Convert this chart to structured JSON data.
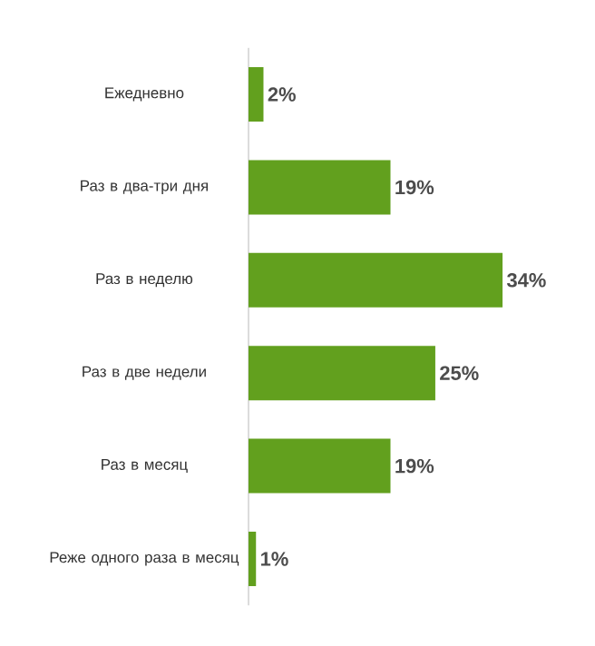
{
  "chart_data": {
    "type": "bar",
    "orientation": "horizontal",
    "categories": [
      "Ежедневно",
      "Раз в два-три дня",
      "Раз в неделю",
      "Раз в две недели",
      "Раз в месяц",
      "Реже одного раза в месяц"
    ],
    "values": [
      2,
      19,
      34,
      25,
      19,
      1
    ],
    "value_labels": [
      "2%",
      "19%",
      "34%",
      "25%",
      "19%",
      "1%"
    ],
    "color": "#62a01e"
  }
}
